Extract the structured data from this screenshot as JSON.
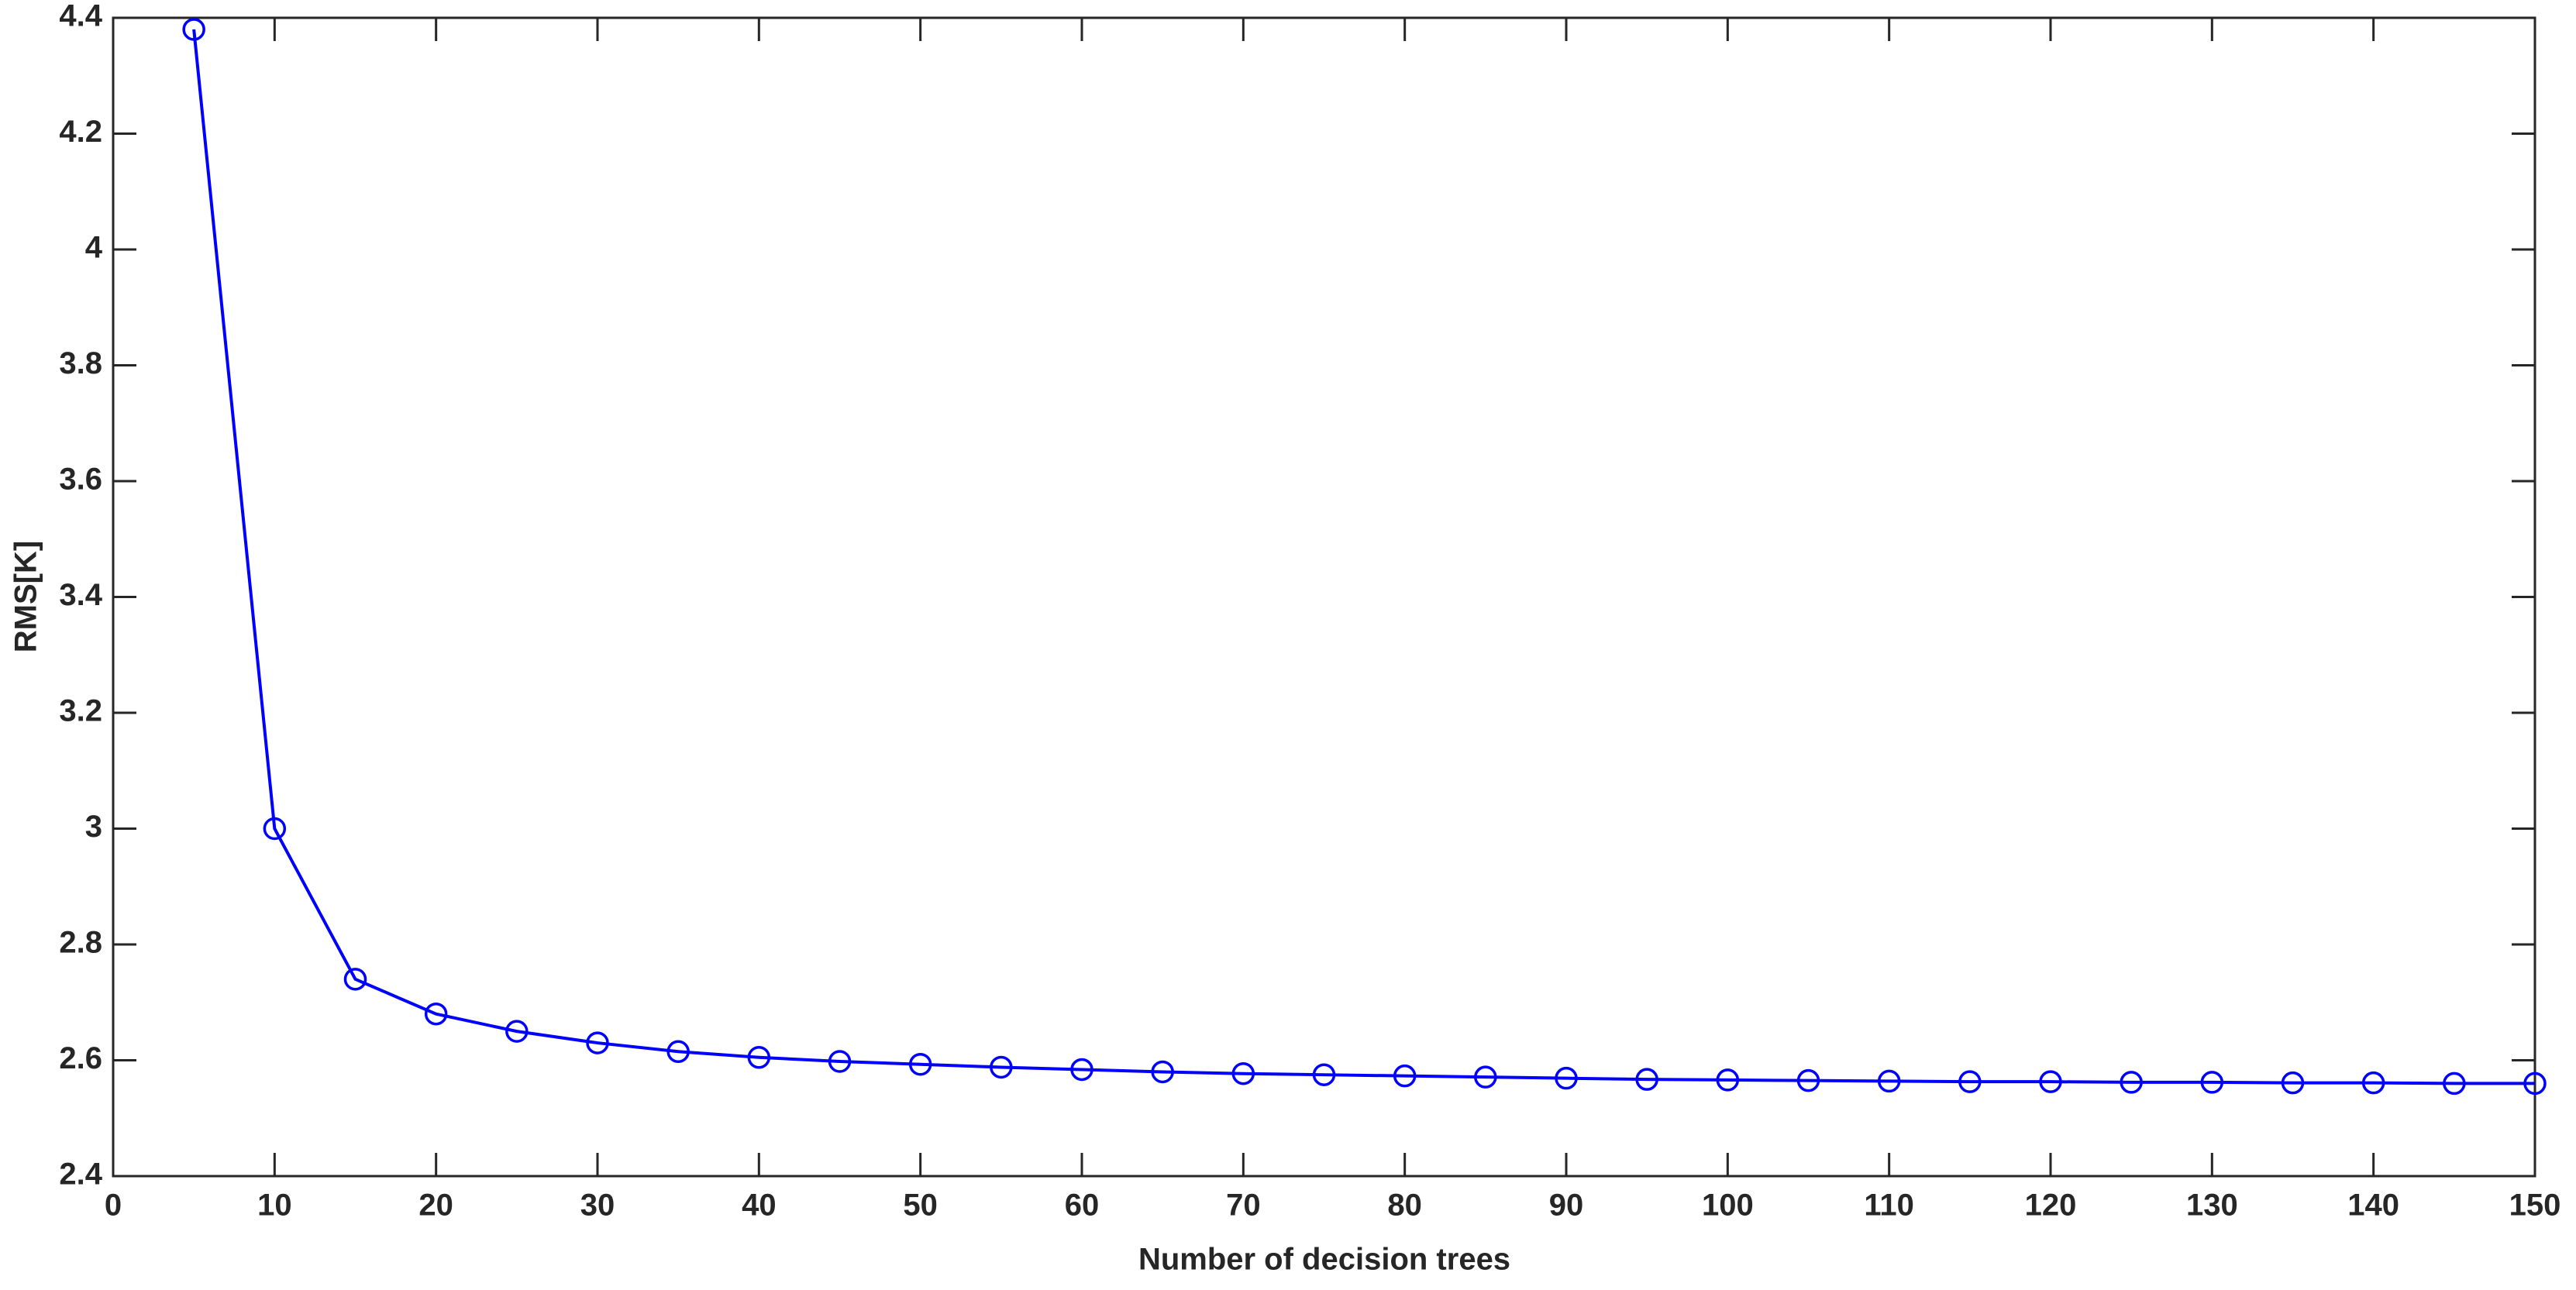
{
  "chart_data": {
    "type": "line",
    "xlabel": "Number of decision trees",
    "ylabel": "RMS[K]",
    "x": [
      5,
      10,
      15,
      20,
      25,
      30,
      35,
      40,
      45,
      50,
      55,
      60,
      65,
      70,
      75,
      80,
      85,
      90,
      95,
      100,
      105,
      110,
      115,
      120,
      125,
      130,
      135,
      140,
      145,
      150
    ],
    "series": [
      {
        "color": "#0000ff",
        "values": [
          4.38,
          3.0,
          2.74,
          2.68,
          2.65,
          2.63,
          2.615,
          2.605,
          2.598,
          2.593,
          2.588,
          2.584,
          2.58,
          2.577,
          2.575,
          2.573,
          2.571,
          2.569,
          2.567,
          2.566,
          2.565,
          2.564,
          2.563,
          2.563,
          2.562,
          2.562,
          2.561,
          2.561,
          2.56,
          2.56
        ]
      }
    ],
    "xlim": [
      0,
      150
    ],
    "xticks": [
      0,
      10,
      20,
      30,
      40,
      50,
      60,
      70,
      80,
      90,
      100,
      110,
      120,
      130,
      140,
      150
    ],
    "ylim": [
      2.4,
      4.4
    ],
    "yticks": [
      2.4,
      2.6,
      2.8,
      3,
      3.2,
      3.4,
      3.6,
      3.8,
      4,
      4.2,
      4.4
    ],
    "grid": false,
    "marker": "circle"
  }
}
